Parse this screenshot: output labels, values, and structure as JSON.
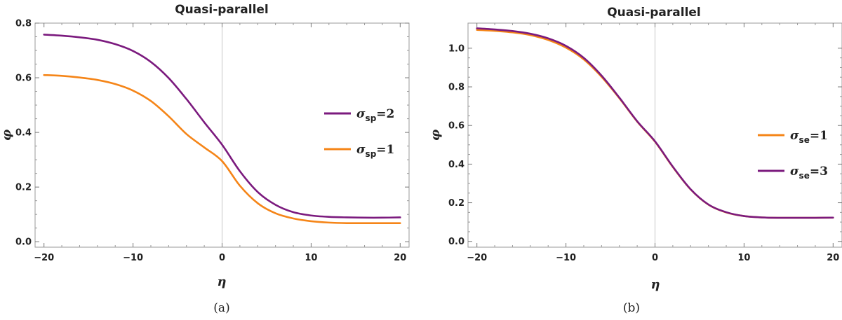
{
  "chart_data": [
    {
      "type": "line",
      "title": "Quasi-parallel",
      "caption": "(a)",
      "xlabel": "η",
      "ylabel": "φ",
      "xlim": [
        -21,
        21
      ],
      "ylim": [
        -0.02,
        0.8
      ],
      "xticks": [
        -20,
        -10,
        0,
        10,
        20
      ],
      "yticks": [
        0.0,
        0.2,
        0.4,
        0.6,
        0.8
      ],
      "xtick_labels": [
        "−20",
        "−10",
        "0",
        "10",
        "20"
      ],
      "ytick_labels": [
        "0.0",
        "0.2",
        "0.4",
        "0.6",
        "0.8"
      ],
      "grid": false,
      "vertical_reference_line_x": 0,
      "legend_position": "right",
      "legend_order": [
        0,
        1
      ],
      "series": [
        {
          "name": "σsp=2",
          "sym": "σ",
          "sub": "sp",
          "rest": "=2",
          "color": "#7B1A7E",
          "x": [
            -20,
            -18,
            -16,
            -14,
            -12,
            -10,
            -8,
            -6,
            -4,
            -2,
            0,
            2,
            4,
            6,
            8,
            10,
            12,
            14,
            16,
            18,
            20
          ],
          "y": [
            0.758,
            0.754,
            0.748,
            0.739,
            0.723,
            0.698,
            0.658,
            0.599,
            0.522,
            0.437,
            0.355,
            0.258,
            0.182,
            0.135,
            0.108,
            0.096,
            0.091,
            0.089,
            0.088,
            0.088,
            0.089
          ]
        },
        {
          "name": "σsp=1",
          "sym": "σ",
          "sub": "sp",
          "rest": "=1",
          "color": "#F58518",
          "x": [
            -20,
            -18,
            -16,
            -14,
            -12,
            -10,
            -8,
            -6,
            -4,
            -2,
            0,
            2,
            4,
            6,
            8,
            10,
            12,
            14,
            16,
            18,
            20
          ],
          "y": [
            0.61,
            0.607,
            0.601,
            0.592,
            0.577,
            0.553,
            0.515,
            0.459,
            0.394,
            0.345,
            0.295,
            0.205,
            0.141,
            0.104,
            0.085,
            0.075,
            0.07,
            0.068,
            0.068,
            0.068,
            0.068
          ]
        }
      ]
    },
    {
      "type": "line",
      "title": "Quasi-parallel",
      "caption": "(b)",
      "xlabel": "η",
      "ylabel": "φ",
      "xlim": [
        -21,
        21
      ],
      "ylim": [
        -0.03,
        1.13
      ],
      "xticks": [
        -20,
        -10,
        0,
        10,
        20
      ],
      "yticks": [
        0.0,
        0.2,
        0.4,
        0.6,
        0.8,
        1.0
      ],
      "xtick_labels": [
        "−20",
        "−10",
        "0",
        "10",
        "20"
      ],
      "ytick_labels": [
        "0.0",
        "0.2",
        "0.4",
        "0.6",
        "0.8",
        "1.0"
      ],
      "grid": false,
      "vertical_reference_line_x": 0,
      "legend_position": "right",
      "legend_order": [
        0,
        1
      ],
      "series": [
        {
          "name": "σse=1",
          "sym": "σ",
          "sub": "se",
          "rest": "=1",
          "color": "#F58518",
          "x": [
            -20,
            -18,
            -16,
            -14,
            -12,
            -10,
            -8,
            -6,
            -4,
            -2,
            0,
            2,
            4,
            6,
            8,
            10,
            12,
            14,
            16,
            18,
            20
          ],
          "y": [
            1.095,
            1.09,
            1.082,
            1.068,
            1.043,
            1.003,
            0.942,
            0.852,
            0.741,
            0.62,
            0.516,
            0.385,
            0.269,
            0.19,
            0.15,
            0.131,
            0.124,
            0.122,
            0.122,
            0.122,
            0.123
          ]
        },
        {
          "name": "σse=3",
          "sym": "σ",
          "sub": "se",
          "rest": "=3",
          "color": "#7B1A7E",
          "x": [
            -20,
            -18,
            -16,
            -14,
            -12,
            -10,
            -8,
            -6,
            -4,
            -2,
            0,
            2,
            4,
            6,
            8,
            10,
            12,
            14,
            16,
            18,
            20
          ],
          "y": [
            1.103,
            1.097,
            1.089,
            1.075,
            1.051,
            1.012,
            0.95,
            0.858,
            0.744,
            0.622,
            0.518,
            0.387,
            0.27,
            0.191,
            0.151,
            0.131,
            0.124,
            0.122,
            0.122,
            0.122,
            0.123
          ]
        }
      ]
    }
  ]
}
